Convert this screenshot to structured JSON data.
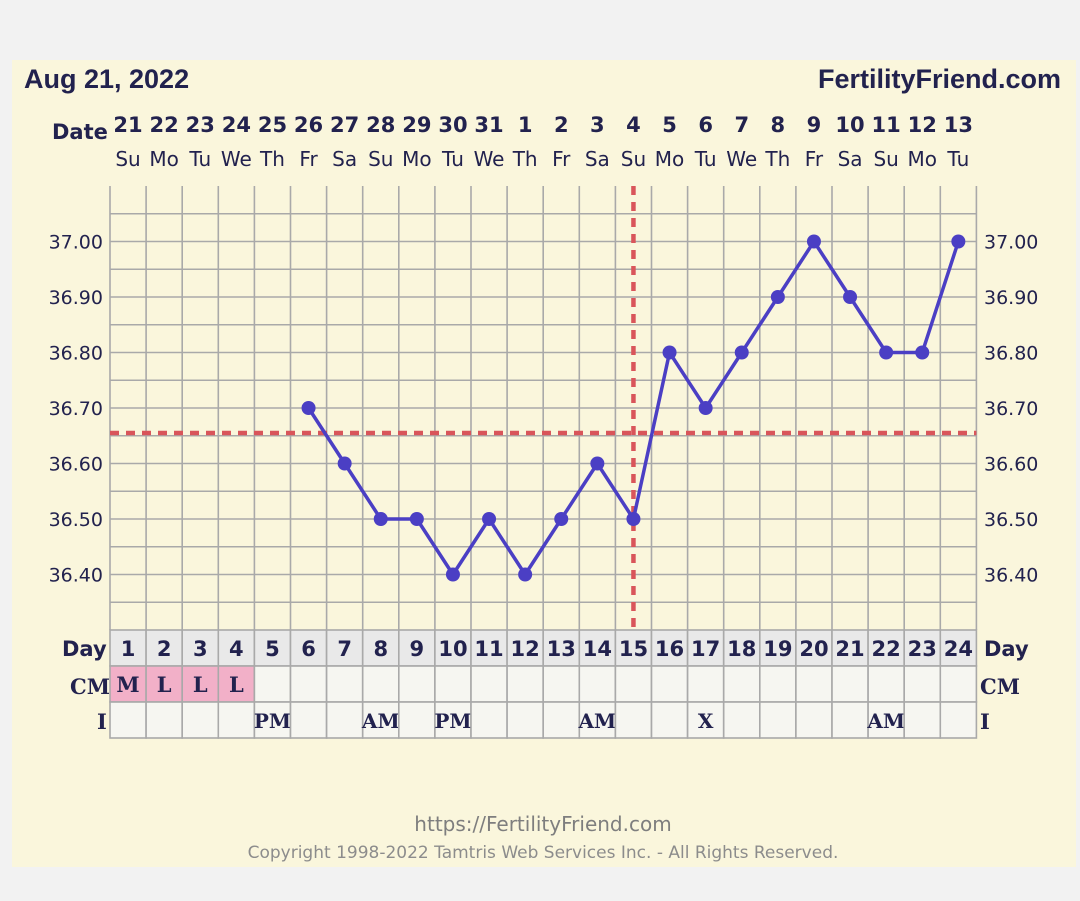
{
  "header": {
    "chart_date": "Aug 21, 2022",
    "site": "FertilityFriend.com"
  },
  "labels": {
    "date": "Date",
    "day": "Day",
    "cm": "CM",
    "intercourse": "I"
  },
  "footer": {
    "url": "https://FertilityFriend.com",
    "copyright": "Copyright 1998-2022 Tamtris Web Services Inc. - All Rights Reserved."
  },
  "colors": {
    "line": "#4b3fc4",
    "dashed": "#d9555a",
    "grid": "#a9a9a9",
    "day_row": "#e9e9e9",
    "cm_marked": "#f2b0c8",
    "cell": "#f6f6f1",
    "text": "#22224e"
  },
  "chart_data": {
    "type": "line",
    "title": "",
    "ylim": [
      36.3,
      37.1
    ],
    "yticks": [
      "36.40",
      "36.50",
      "36.60",
      "36.70",
      "36.80",
      "36.90",
      "37.00"
    ],
    "dates": [
      "21",
      "22",
      "23",
      "24",
      "25",
      "26",
      "27",
      "28",
      "29",
      "30",
      "31",
      "1",
      "2",
      "3",
      "4",
      "5",
      "6",
      "7",
      "8",
      "9",
      "10",
      "11",
      "12",
      "13"
    ],
    "weekdays": [
      "Su",
      "Mo",
      "Tu",
      "We",
      "Th",
      "Fr",
      "Sa",
      "Su",
      "Mo",
      "Tu",
      "We",
      "Th",
      "Fr",
      "Sa",
      "Su",
      "Mo",
      "Tu",
      "We",
      "Th",
      "Fr",
      "Sa",
      "Su",
      "Mo",
      "Tu"
    ],
    "cycle_days": [
      "1",
      "2",
      "3",
      "4",
      "5",
      "6",
      "7",
      "8",
      "9",
      "10",
      "11",
      "12",
      "13",
      "14",
      "15",
      "16",
      "17",
      "18",
      "19",
      "20",
      "21",
      "22",
      "23",
      "24"
    ],
    "temperatures": [
      null,
      null,
      null,
      null,
      null,
      36.7,
      36.6,
      36.5,
      36.5,
      36.4,
      36.5,
      36.4,
      36.5,
      36.6,
      36.5,
      36.8,
      36.7,
      36.8,
      36.9,
      37.0,
      36.9,
      36.8,
      36.8,
      37.0
    ],
    "coverline": 36.655,
    "ovulation_day": 15,
    "cm": [
      "M",
      "L",
      "L",
      "L",
      "",
      "",
      "",
      "",
      "",
      "",
      "",
      "",
      "",
      "",
      "",
      "",
      "",
      "",
      "",
      "",
      "",
      "",
      "",
      ""
    ],
    "intercourse": [
      "",
      "",
      "",
      "",
      "PM",
      "",
      "",
      "AM",
      "",
      "PM",
      "",
      "",
      "",
      "AM",
      "",
      "",
      "X",
      "",
      "",
      "",
      "",
      "AM",
      "",
      ""
    ],
    "grid": true
  }
}
